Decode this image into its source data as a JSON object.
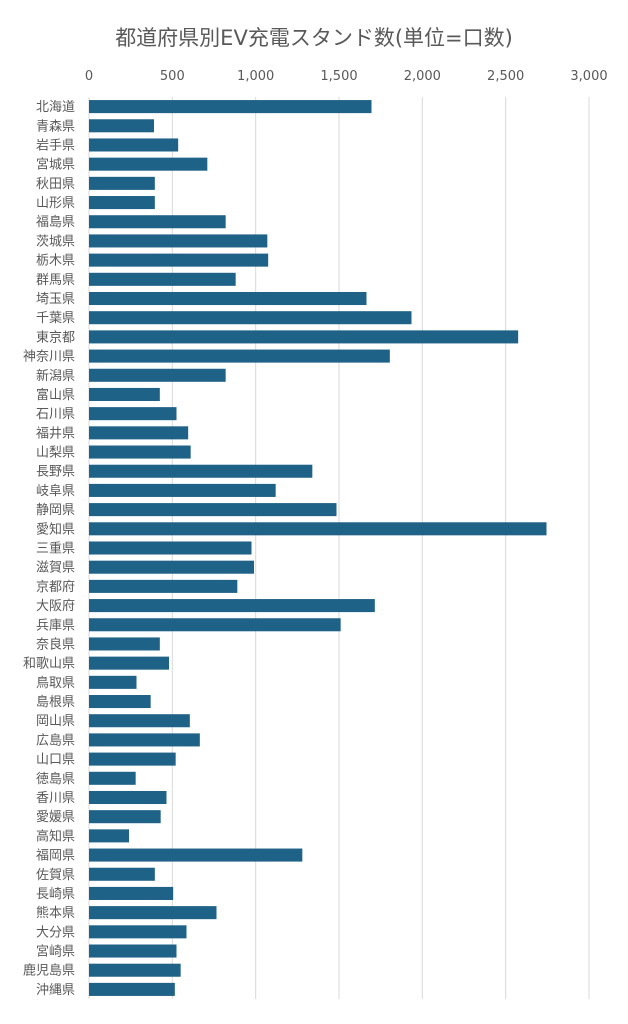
{
  "chart_data": {
    "type": "bar",
    "orientation": "horizontal",
    "title": "都道府県別EV充電スタンド数(単位=口数)",
    "xlabel": "",
    "ylabel": "",
    "xlim": [
      0,
      3000
    ],
    "xticks": [
      "0",
      "500",
      "1,000",
      "1,500",
      "2,000",
      "2,500",
      "3,000"
    ],
    "grid": true,
    "legend": "none",
    "color": "#1f6287",
    "categories": [
      "北海道",
      "青森県",
      "岩手県",
      "宮城県",
      "秋田県",
      "山形県",
      "福島県",
      "茨城県",
      "栃木県",
      "群馬県",
      "埼玉県",
      "千葉県",
      "東京都",
      "神奈川県",
      "新潟県",
      "富山県",
      "石川県",
      "福井県",
      "山梨県",
      "長野県",
      "岐阜県",
      "静岡県",
      "愛知県",
      "三重県",
      "滋賀県",
      "京都府",
      "大阪府",
      "兵庫県",
      "奈良県",
      "和歌山県",
      "鳥取県",
      "島根県",
      "岡山県",
      "広島県",
      "山口県",
      "徳島県",
      "香川県",
      "愛媛県",
      "高知県",
      "福岡県",
      "佐賀県",
      "長崎県",
      "熊本県",
      "大分県",
      "宮崎県",
      "鹿児島県",
      "沖縄県"
    ],
    "values": [
      1695,
      390,
      535,
      710,
      395,
      395,
      820,
      1070,
      1075,
      880,
      1665,
      1935,
      2575,
      1805,
      820,
      425,
      525,
      595,
      610,
      1340,
      1120,
      1485,
      2745,
      975,
      990,
      890,
      1715,
      1510,
      425,
      480,
      285,
      370,
      605,
      665,
      520,
      280,
      465,
      430,
      240,
      1280,
      395,
      505,
      765,
      585,
      525,
      550,
      515
    ]
  }
}
